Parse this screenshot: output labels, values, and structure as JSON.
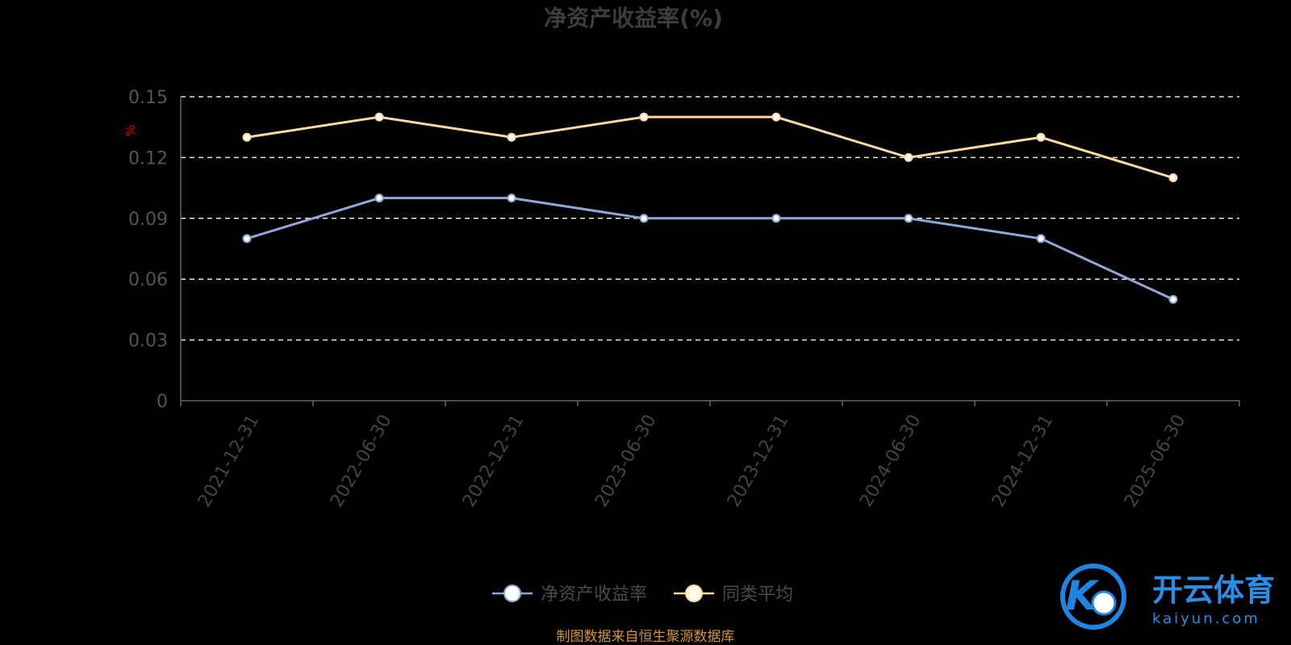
{
  "chart_data": {
    "type": "line",
    "title": "净资产收益率(%)",
    "ylabel": "%",
    "x": [
      "2021-12-31",
      "2022-06-30",
      "2022-12-31",
      "2023-06-30",
      "2023-12-31",
      "2024-06-30",
      "2024-12-31",
      "2025-06-30"
    ],
    "y_ticks": [
      "0",
      "0.03",
      "0.06",
      "0.09",
      "0.12",
      "0.15"
    ],
    "ylim": [
      0,
      0.15
    ],
    "grid": true,
    "legend_position": "bottom",
    "series": [
      {
        "name": "净资产收益率",
        "color": "#8fa8d8",
        "values": [
          0.08,
          0.1,
          0.1,
          0.09,
          0.09,
          0.09,
          0.08,
          0.05
        ]
      },
      {
        "name": "同类平均",
        "color": "#fcd9a0",
        "values": [
          0.13,
          0.14,
          0.13,
          0.14,
          0.14,
          0.12,
          0.13,
          0.11
        ]
      }
    ]
  },
  "source_text": "制图数据来自恒生聚源数据库",
  "logo": {
    "cn": "开云体育",
    "en": "kaiyun.com",
    "mark": "K"
  }
}
